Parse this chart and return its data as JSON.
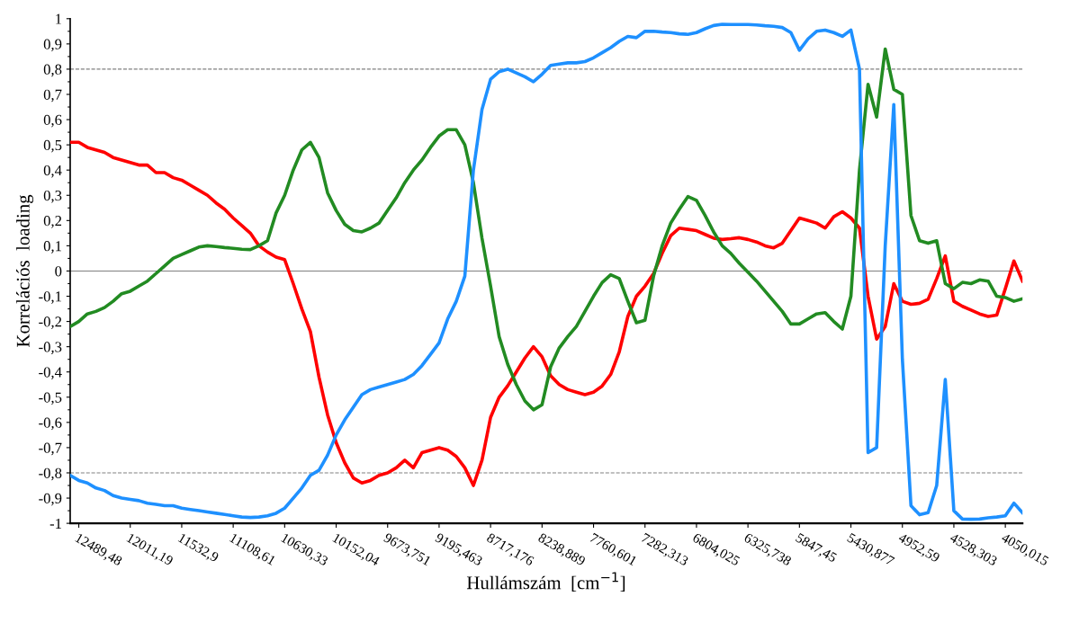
{
  "chart_data": {
    "type": "line",
    "xlabel": "Hullámszám  [cm$^{−1}$]",
    "ylabel": "Korrelációs  loading",
    "categories": [
      null,
      "12489,48",
      null,
      null,
      null,
      null,
      null,
      "12011,19",
      null,
      null,
      null,
      null,
      null,
      "11532,9",
      null,
      null,
      null,
      null,
      null,
      "11108,61",
      null,
      null,
      null,
      null,
      null,
      "10630,33",
      null,
      null,
      null,
      null,
      null,
      "10152,04",
      null,
      null,
      null,
      null,
      null,
      "9673,751",
      null,
      null,
      null,
      null,
      null,
      "9195,463",
      null,
      null,
      null,
      null,
      null,
      "8717,176",
      null,
      null,
      null,
      null,
      null,
      "8238,889",
      null,
      null,
      null,
      null,
      null,
      "7760,601",
      null,
      null,
      null,
      null,
      null,
      "7282,313",
      null,
      null,
      null,
      null,
      null,
      "6804,025",
      null,
      null,
      null,
      null,
      null,
      "6325,738",
      null,
      null,
      null,
      null,
      null,
      "5847,45",
      null,
      null,
      null,
      null,
      null,
      "5430,877",
      null,
      null,
      null,
      null,
      null,
      "4952,59",
      null,
      null,
      null,
      null,
      null,
      "4528,303",
      null,
      null,
      null,
      null,
      null,
      "4050,015",
      null,
      null
    ],
    "series": [
      {
        "color": "#ff0000",
        "values": [
          0.51,
          0.51,
          0.49,
          0.48,
          0.47,
          0.45,
          0.44,
          0.43,
          0.42,
          0.42,
          0.39,
          0.39,
          0.37,
          0.36,
          0.34,
          0.32,
          0.3,
          0.27,
          0.245,
          0.21,
          0.18,
          0.15,
          0.1,
          0.075,
          0.055,
          0.045,
          -0.05,
          -0.15,
          -0.24,
          -0.42,
          -0.57,
          -0.68,
          -0.76,
          -0.82,
          -0.84,
          -0.83,
          -0.81,
          -0.8,
          -0.78,
          -0.75,
          -0.78,
          -0.72,
          -0.71,
          -0.7,
          -0.71,
          -0.735,
          -0.78,
          -0.85,
          -0.75,
          -0.58,
          -0.5,
          -0.455,
          -0.4,
          -0.345,
          -0.3,
          -0.34,
          -0.415,
          -0.45,
          -0.47,
          -0.48,
          -0.49,
          -0.48,
          -0.456,
          -0.41,
          -0.32,
          -0.18,
          -0.1,
          -0.06,
          -0.01,
          0.07,
          0.14,
          0.17,
          0.165,
          0.16,
          0.145,
          0.13,
          0.125,
          0.128,
          0.132,
          0.125,
          0.115,
          0.1,
          0.092,
          0.11,
          0.16,
          0.21,
          0.2,
          0.19,
          0.17,
          0.215,
          0.235,
          0.21,
          0.17,
          -0.1,
          -0.27,
          -0.22,
          -0.05,
          -0.12,
          -0.132,
          -0.128,
          -0.112,
          -0.03,
          0.06,
          -0.12,
          -0.14,
          -0.155,
          -0.17,
          -0.18,
          -0.175,
          -0.07,
          0.04,
          -0.04
        ]
      },
      {
        "color": "#228b22",
        "values": [
          -0.22,
          -0.2,
          -0.17,
          -0.16,
          -0.145,
          -0.12,
          -0.09,
          -0.08,
          -0.06,
          -0.04,
          -0.01,
          0.02,
          0.05,
          0.065,
          0.08,
          0.095,
          0.1,
          0.097,
          0.093,
          0.09,
          0.086,
          0.085,
          0.1,
          0.12,
          0.23,
          0.3,
          0.4,
          0.48,
          0.51,
          0.45,
          0.31,
          0.24,
          0.185,
          0.16,
          0.155,
          0.17,
          0.19,
          0.24,
          0.29,
          0.35,
          0.4,
          0.44,
          0.49,
          0.535,
          0.56,
          0.56,
          0.5,
          0.35,
          0.13,
          -0.06,
          -0.26,
          -0.37,
          -0.45,
          -0.515,
          -0.55,
          -0.53,
          -0.38,
          -0.305,
          -0.26,
          -0.22,
          -0.16,
          -0.1,
          -0.046,
          -0.015,
          -0.03,
          -0.12,
          -0.205,
          -0.195,
          -0.02,
          0.1,
          0.19,
          0.245,
          0.295,
          0.28,
          0.22,
          0.155,
          0.1,
          0.07,
          0.03,
          -0.005,
          -0.04,
          -0.08,
          -0.12,
          -0.16,
          -0.21,
          -0.21,
          -0.19,
          -0.17,
          -0.165,
          -0.2,
          -0.23,
          -0.1,
          0.4,
          0.74,
          0.61,
          0.88,
          0.72,
          0.7,
          0.22,
          0.12,
          0.11,
          0.12,
          -0.05,
          -0.07,
          -0.045,
          -0.05,
          -0.035,
          -0.04,
          -0.1,
          -0.105,
          -0.12,
          -0.11
        ]
      },
      {
        "color": "#1e90ff",
        "values": [
          -0.81,
          -0.83,
          -0.84,
          -0.86,
          -0.87,
          -0.89,
          -0.9,
          -0.905,
          -0.91,
          -0.92,
          -0.925,
          -0.93,
          -0.93,
          -0.94,
          -0.945,
          -0.95,
          -0.955,
          -0.96,
          -0.965,
          -0.97,
          -0.975,
          -0.977,
          -0.975,
          -0.97,
          -0.96,
          -0.94,
          -0.9,
          -0.86,
          -0.81,
          -0.79,
          -0.73,
          -0.65,
          -0.59,
          -0.54,
          -0.49,
          -0.47,
          -0.46,
          -0.45,
          -0.44,
          -0.43,
          -0.41,
          -0.375,
          -0.33,
          -0.285,
          -0.19,
          -0.12,
          -0.02,
          0.4,
          0.64,
          0.76,
          0.79,
          0.8,
          0.785,
          0.77,
          0.75,
          0.78,
          0.815,
          0.82,
          0.825,
          0.825,
          0.83,
          0.845,
          0.865,
          0.885,
          0.91,
          0.93,
          0.925,
          0.95,
          0.95,
          0.947,
          0.945,
          0.94,
          0.938,
          0.945,
          0.96,
          0.973,
          0.978,
          0.977,
          0.977,
          0.977,
          0.975,
          0.972,
          0.97,
          0.965,
          0.945,
          0.875,
          0.92,
          0.95,
          0.955,
          0.945,
          0.93,
          0.955,
          0.8,
          -0.72,
          -0.7,
          0.1,
          0.66,
          -0.35,
          -0.93,
          -0.966,
          -0.958,
          -0.85,
          -0.43,
          -0.95,
          -0.983,
          -0.984,
          -0.983,
          -0.978,
          -0.975,
          -0.97,
          -0.92,
          -0.958
        ]
      }
    ],
    "ylim": [
      -1,
      1
    ],
    "yticks": [
      -1,
      {
        "value": -0.95,
        "label": null
      },
      {
        "value": -0.9,
        "label": "-0,9"
      },
      {
        "value": -0.85,
        "label": null
      },
      {
        "value": -0.8,
        "label": "-0,8"
      },
      {
        "value": -0.75,
        "label": null
      },
      {
        "value": -0.7,
        "label": "-0,7"
      },
      {
        "value": -0.65,
        "label": null
      },
      {
        "value": -0.6,
        "label": "-0,6"
      },
      {
        "value": -0.55,
        "label": null
      },
      {
        "value": -0.5,
        "label": "-0,5"
      },
      {
        "value": -0.45,
        "label": null
      },
      {
        "value": -0.4,
        "label": "-0,4"
      },
      {
        "value": -0.35,
        "label": null
      },
      {
        "value": -0.3,
        "label": "-0,3"
      },
      {
        "value": -0.25,
        "label": null
      },
      {
        "value": -0.2,
        "label": "-0,2"
      },
      {
        "value": -0.15,
        "label": null
      },
      {
        "value": -0.1,
        "label": "-0,1"
      },
      {
        "value": -0.05,
        "label": null
      },
      0,
      {
        "value": 0.05,
        "label": null
      },
      {
        "value": 0.1,
        "label": "0,1"
      },
      {
        "value": 0.15,
        "label": null
      },
      {
        "value": 0.2,
        "label": "0,2"
      },
      {
        "value": 0.25,
        "label": null
      },
      {
        "value": 0.3,
        "label": "0,3"
      },
      {
        "value": 0.35,
        "label": null
      },
      {
        "value": 0.4,
        "label": "0,4"
      },
      {
        "value": 0.45,
        "label": null
      },
      {
        "value": 0.5,
        "label": "0,5"
      },
      {
        "value": 0.55,
        "label": null
      },
      {
        "value": 0.6,
        "label": "0,6"
      },
      {
        "value": 0.65,
        "label": null
      },
      {
        "value": 0.7,
        "label": "0,7"
      },
      {
        "value": 0.75,
        "label": null
      },
      {
        "value": 0.8,
        "label": "0,8"
      },
      {
        "value": 0.85,
        "label": null
      },
      {
        "value": 0.9,
        "label": "0,9"
      },
      {
        "value": 0.95,
        "label": null
      },
      1
    ],
    "ref_lines": [
      {
        "axis": "y",
        "value": 0.8,
        "color": "#808080",
        "line_style": "dashed"
      },
      {
        "axis": "y",
        "value": 0,
        "color": "#808080",
        "line_style": "solid"
      },
      {
        "axis": "y",
        "value": -0.8,
        "color": "#808080",
        "line_style": "dashed"
      }
    ],
    "grid": false,
    "legend": false,
    "marker": "none",
    "line_style": "solid"
  }
}
